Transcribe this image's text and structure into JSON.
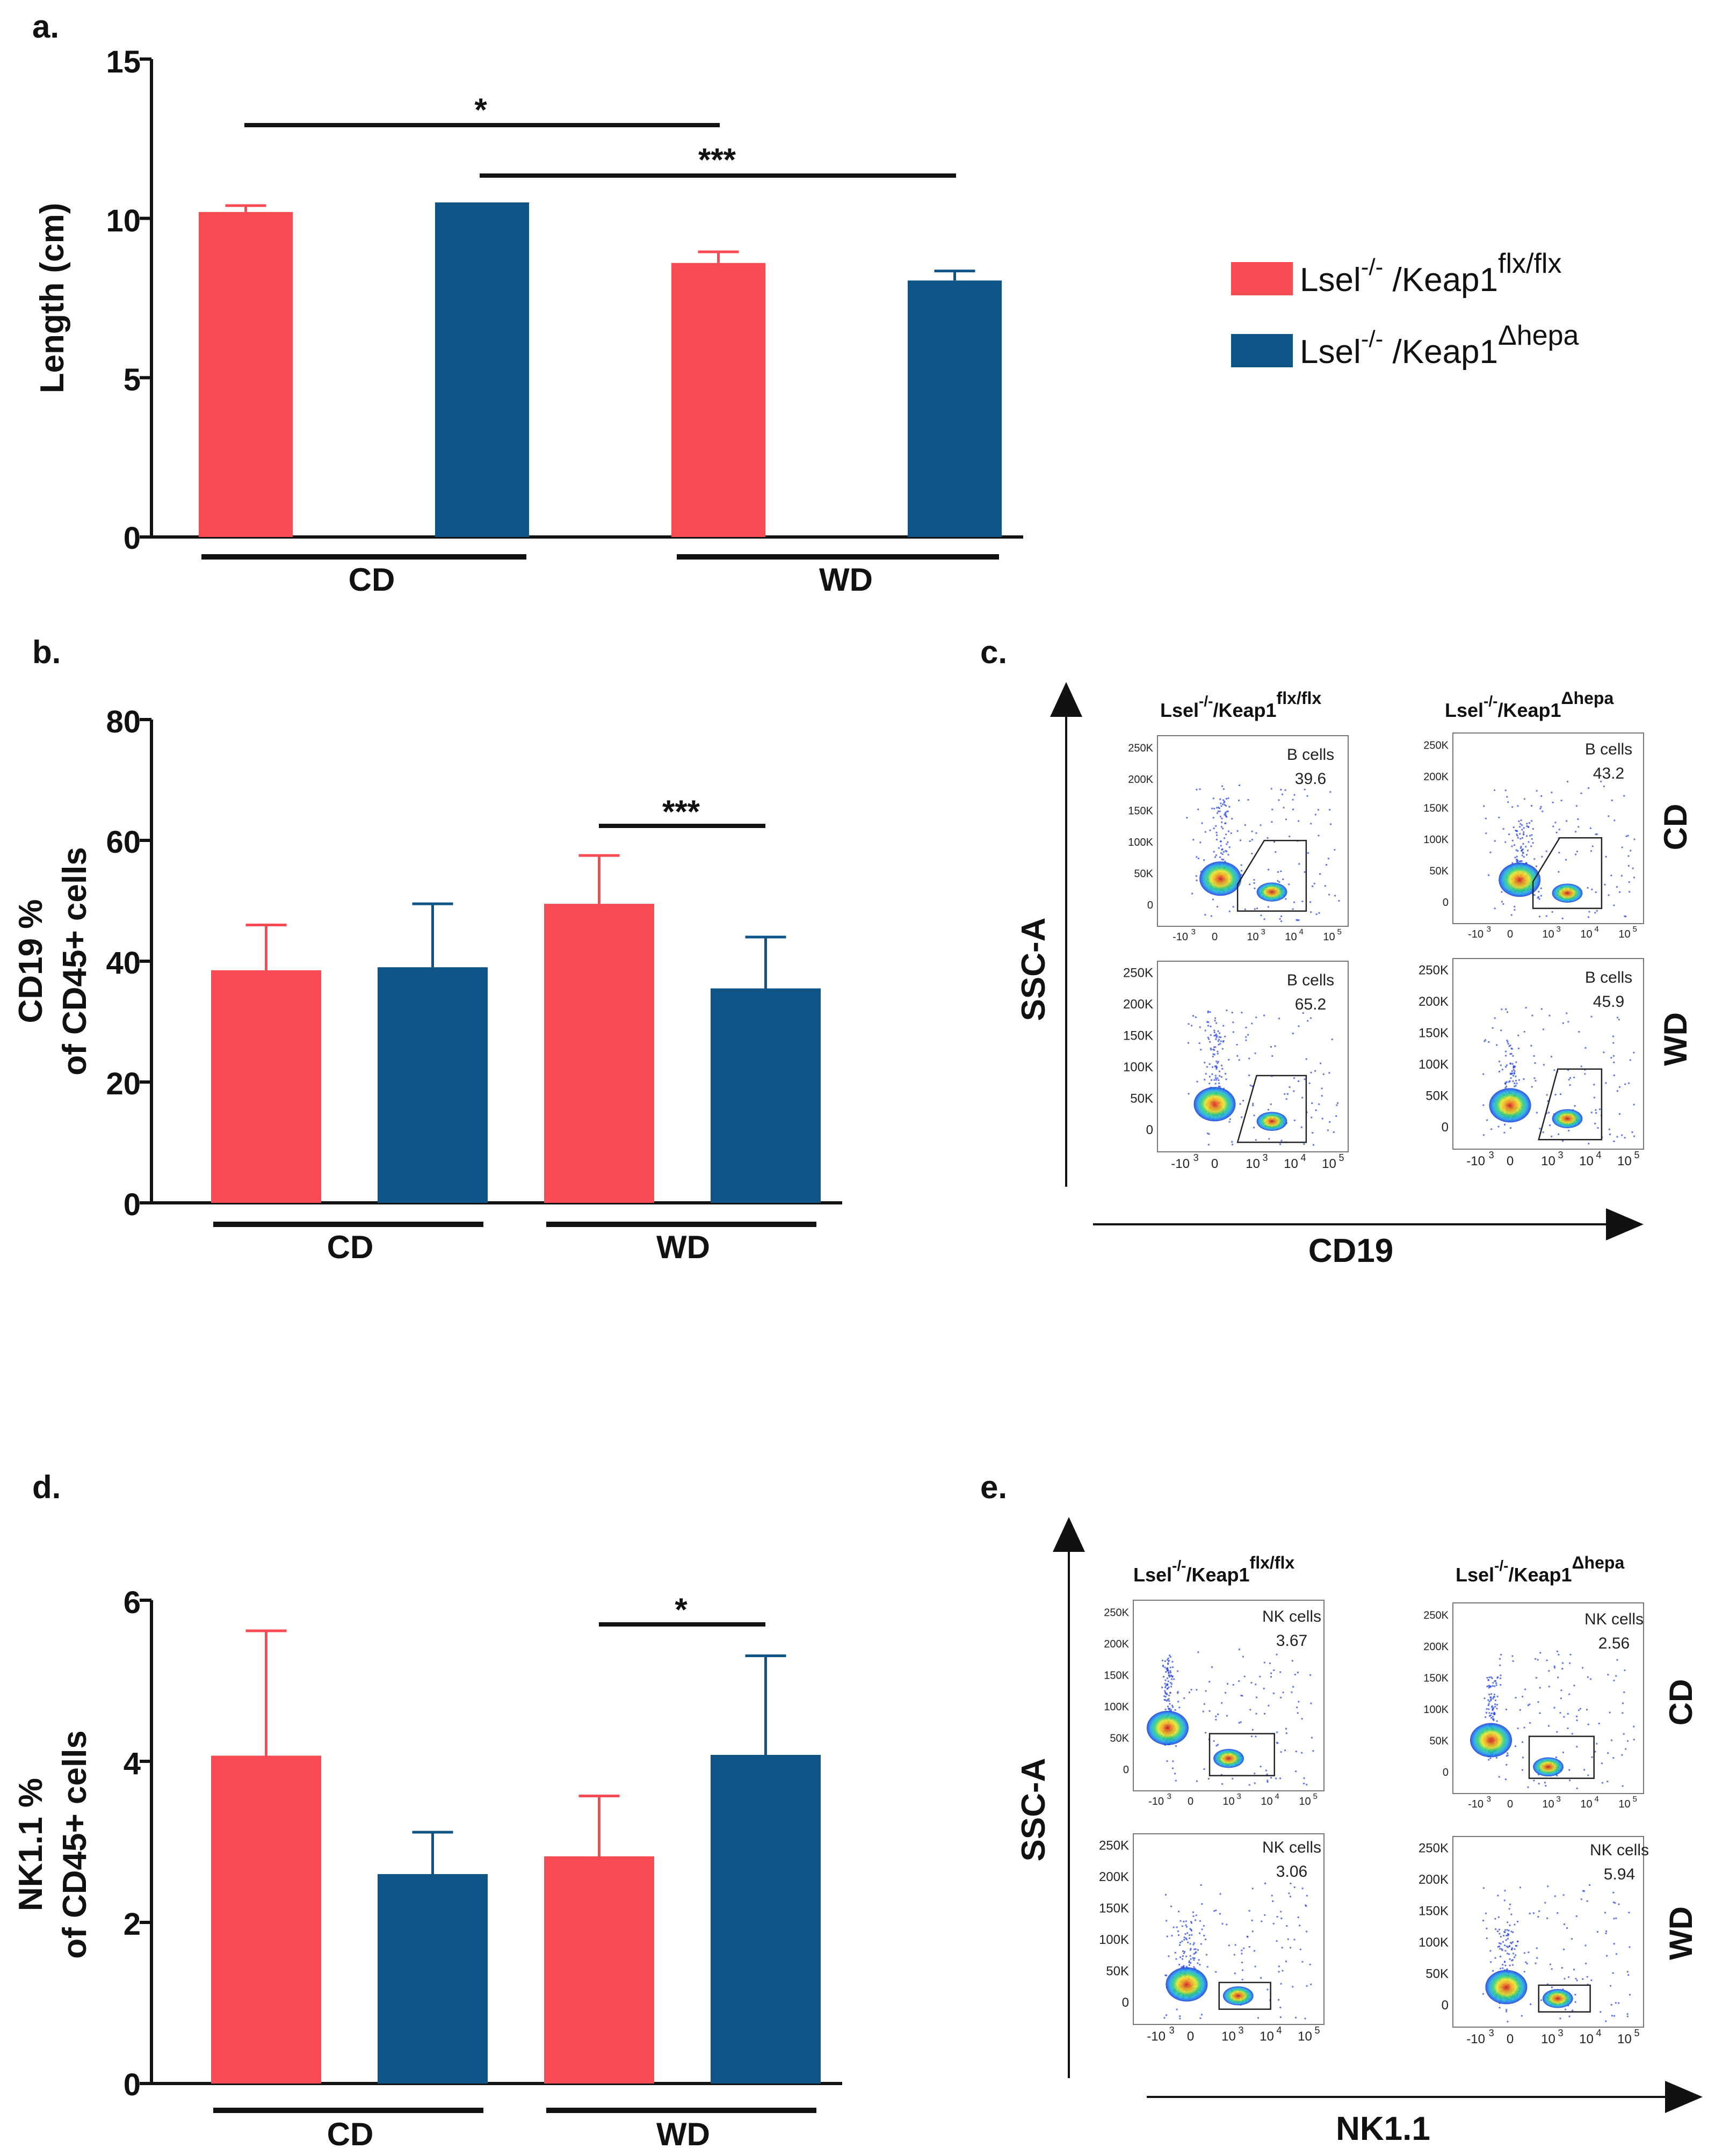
{
  "colors": {
    "red": "#F94B54",
    "blue": "#0E5487",
    "black": "#111111",
    "dot_blue": "#1f3fe0"
  },
  "legend": {
    "item1": {
      "base": "Lsel",
      "sup1": "-/-",
      "mid": " /Keap1",
      "sup2": "flx/flx"
    },
    "item2": {
      "base": "Lsel",
      "sup1": "-/-",
      "mid": " /Keap1",
      "sup2": "Δhepa"
    }
  },
  "chart_data": [
    {
      "panel": "a.",
      "type": "bar",
      "ylabel": "Length (cm)",
      "ylim": [
        0,
        15
      ],
      "yticks": [
        "0",
        "5",
        "10",
        "15"
      ],
      "groups": [
        "CD",
        "WD"
      ],
      "series": [
        {
          "name": "Lsel-/-/Keap1flx/flx",
          "values": [
            10.2,
            8.6
          ],
          "errors": [
            0.2,
            0.35
          ]
        },
        {
          "name": "Lsel-/-/Keap1Δhepa",
          "values": [
            10.5,
            8.05
          ],
          "errors": [
            0.0,
            0.3
          ]
        }
      ],
      "significance": [
        {
          "label": "*"
        },
        {
          "label": "***"
        }
      ]
    },
    {
      "panel": "b.",
      "type": "bar",
      "ylabel_line1": "CD19 %",
      "ylabel_line2": "of CD45+ cells",
      "ylim": [
        0,
        80
      ],
      "yticks": [
        "0",
        "20",
        "40",
        "60",
        "80"
      ],
      "groups": [
        "CD",
        "WD"
      ],
      "series": [
        {
          "name": "Lsel-/-/Keap1flx/flx",
          "values": [
            38.5,
            49.5
          ],
          "errors": [
            7.5,
            8.0
          ]
        },
        {
          "name": "Lsel-/-/Keap1Δhepa",
          "values": [
            39.0,
            35.5
          ],
          "errors": [
            10.5,
            8.5
          ]
        }
      ],
      "significance": [
        {
          "label": "***"
        }
      ]
    },
    {
      "panel": "d.",
      "type": "bar",
      "ylabel_line1": "NK1.1 %",
      "ylabel_line2": "of CD45+ cells",
      "ylim": [
        0,
        6
      ],
      "yticks": [
        "0",
        "2",
        "4",
        "6"
      ],
      "groups": [
        "CD",
        "WD"
      ],
      "series": [
        {
          "name": "Lsel-/-/Keap1flx/flx",
          "values": [
            4.07,
            2.82
          ],
          "errors": [
            1.55,
            0.75
          ]
        },
        {
          "name": "Lsel-/-/Keap1Δhepa",
          "values": [
            2.6,
            4.08
          ],
          "errors": [
            0.52,
            1.23
          ]
        }
      ],
      "significance": [
        {
          "label": "*"
        }
      ]
    }
  ],
  "flow_c": {
    "panel": "c.",
    "ylabel": "SSC-A",
    "xlabel": "CD19",
    "col1": {
      "base": "Lsel",
      "sup1": "-/-",
      "mid": "/Keap1",
      "sup2": "flx/flx"
    },
    "col2": {
      "base": "Lsel",
      "sup1": "-/-",
      "mid": "/Keap1",
      "sup2": "Δhepa"
    },
    "row1": "CD",
    "row2": "WD",
    "gate_label": "B cells",
    "values": {
      "cd_flx": "39.6",
      "cd_hepa": "43.2",
      "wd_flx": "65.2",
      "wd_hepa": "45.9"
    },
    "yticks_small": [
      "250K",
      "200K",
      "150K",
      "100K",
      "50K",
      "0"
    ],
    "yticks_large": [
      "250K",
      "200K",
      "150K",
      "100K",
      "50K",
      "0"
    ],
    "xticks": {
      "neg": "-10",
      "e3": "10",
      "e4": "10",
      "e5": "10",
      "zero": "0",
      "p3": "3",
      "p4": "4",
      "p5": "5"
    }
  },
  "flow_e": {
    "panel": "e.",
    "ylabel": "SSC-A",
    "xlabel": "NK1.1",
    "col1": {
      "base": "Lsel",
      "sup1": "-/-",
      "mid": "/Keap1",
      "sup2": "flx/flx"
    },
    "col2": {
      "base": "Lsel",
      "sup1": "-/-",
      "mid": "/Keap1",
      "sup2": "Δhepa"
    },
    "row1": "CD",
    "row2": "WD",
    "gate_label": "NK cells",
    "values": {
      "cd_flx": "3.67",
      "cd_hepa": "2.56",
      "wd_flx": "3.06",
      "wd_hepa": "5.94"
    },
    "yticks_small": [
      "250K",
      "200K",
      "150K",
      "100K",
      "50K",
      "0"
    ],
    "yticks_large": [
      "250K",
      "200K",
      "150K",
      "100K",
      "50K",
      "0"
    ],
    "xticks": {
      "neg": "-10",
      "e3": "10",
      "e4": "10",
      "e5": "10",
      "zero": "0",
      "p3": "3",
      "p4": "4",
      "p5": "5"
    }
  }
}
